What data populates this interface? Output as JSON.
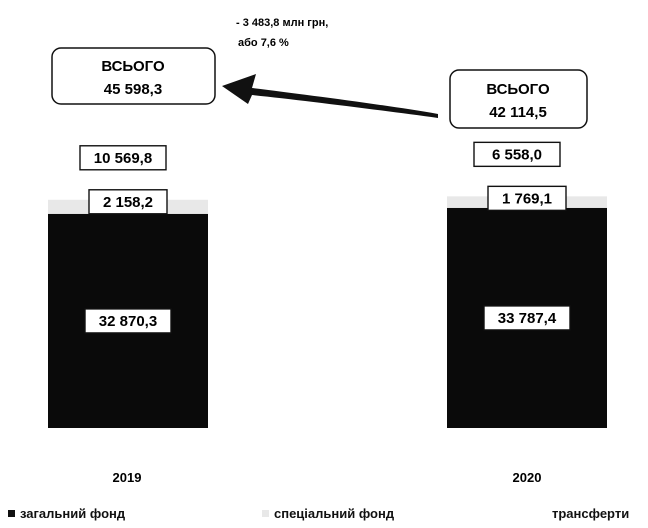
{
  "chart_data": {
    "type": "bar",
    "stacked": true,
    "categories": [
      "2019",
      "2020"
    ],
    "series": [
      {
        "name": "загальний фонд",
        "values": [
          32870.3,
          33787.4
        ],
        "labels": [
          "32 870,3",
          "33 787,4"
        ],
        "color": "#0a0a0a"
      },
      {
        "name": "спеціальний фонд",
        "values": [
          2158.2,
          1769.1
        ],
        "labels": [
          "2 158,2",
          "1 769,1"
        ],
        "color": "#e8e8e8"
      },
      {
        "name": "трансферти",
        "values": [
          10569.8,
          6558.0
        ],
        "labels": [
          "10 569,8",
          "6 558,0"
        ],
        "color": "#ffffff"
      }
    ],
    "totals": [
      {
        "title": "ВСЬОГО",
        "value": "45 598,3"
      },
      {
        "title": "ВСЬОГО",
        "value": "42 114,5"
      }
    ],
    "annotation": {
      "line1": "- 3 483,8 млн грн,",
      "line2": "або 7,6 %"
    },
    "legend_position": "bottom",
    "grid": false
  }
}
